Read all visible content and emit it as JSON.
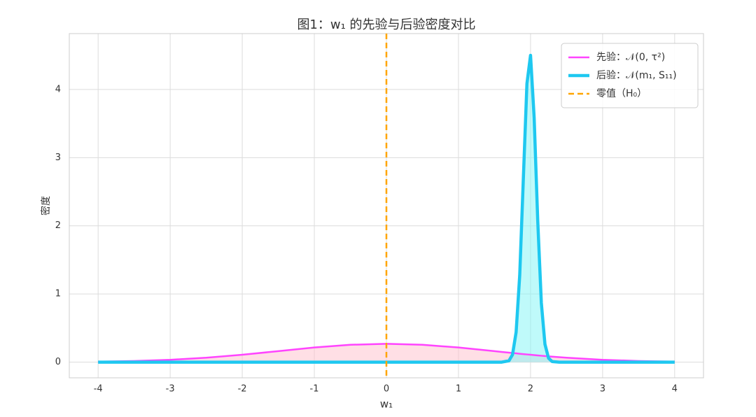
{
  "chart_data": {
    "type": "line",
    "title": "图1：w₁ 的先验与后验密度对比",
    "xlabel": "w₁",
    "ylabel": "密度",
    "x": [
      -4,
      -3.5,
      -3,
      -2.5,
      -2,
      -1.5,
      -1,
      -0.5,
      0,
      0.5,
      1,
      1.5,
      1.6,
      1.7,
      1.75,
      1.8,
      1.85,
      1.9,
      1.95,
      2.0,
      2.05,
      2.1,
      2.15,
      2.2,
      2.25,
      2.3,
      2.4,
      2.5,
      3,
      3.5,
      4
    ],
    "series": [
      {
        "name": "先验：𝒩(0, τ²)",
        "color": "#ff44ff",
        "fill": "#ffc0cb",
        "width": 2.5,
        "values": [
          0.007,
          0.0165,
          0.0346,
          0.0647,
          0.1082,
          0.1613,
          0.2146,
          0.2546,
          0.2696,
          0.2546,
          0.2146,
          0.1613,
          0.1503,
          0.1394,
          0.134,
          0.1287,
          0.1234,
          0.1183,
          0.1132,
          0.1082,
          0.1033,
          0.0985,
          0.0939,
          0.0893,
          0.0849,
          0.0806,
          0.0724,
          0.0647,
          0.0346,
          0.0165,
          0.007
        ]
      },
      {
        "name": "后验：𝒩(m₁, S₁₁)",
        "color": "#1ec8f0",
        "fill": "#7ff5f5",
        "width": 4.5,
        "values": [
          0,
          0,
          0,
          0,
          0,
          0,
          0,
          0,
          0,
          0,
          0,
          0,
          0.0002,
          0.02,
          0.11,
          0.44,
          1.277,
          2.685,
          4.085,
          4.501,
          3.59,
          2.074,
          0.868,
          0.263,
          0.058,
          0.009,
          0,
          0,
          0,
          0,
          0
        ]
      }
    ],
    "vlines": [
      {
        "name": "零值（H₀）",
        "x": 0,
        "color": "#ffa500"
      }
    ],
    "xlim": [
      -4.4,
      4.4
    ],
    "ylim": [
      -0.23,
      4.82
    ],
    "xticks": [
      -4,
      -3,
      -2,
      -1,
      0,
      1,
      2,
      3,
      4
    ],
    "yticks": [
      0,
      1,
      2,
      3,
      4
    ],
    "grid": true,
    "legend": "upper right"
  }
}
